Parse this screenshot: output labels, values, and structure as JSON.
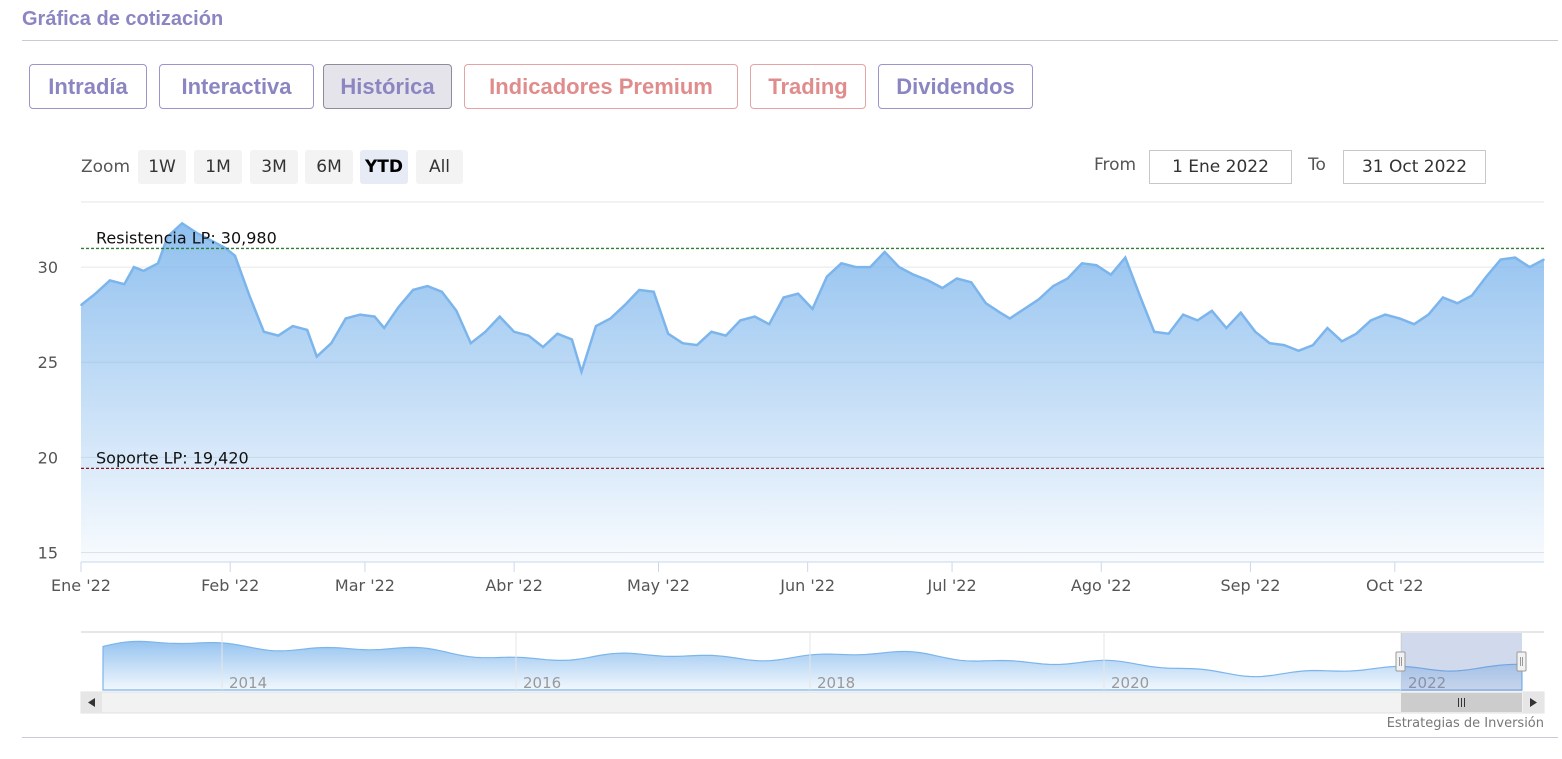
{
  "section_title": "Gráfica de cotización",
  "tabs": [
    {
      "label": "Intradía",
      "active": false,
      "premium": false
    },
    {
      "label": "Interactiva",
      "active": false,
      "premium": false
    },
    {
      "label": "Histórica",
      "active": true,
      "premium": false
    },
    {
      "label": "Indicadores Premium",
      "active": false,
      "premium": true
    },
    {
      "label": "Trading",
      "active": false,
      "premium": true
    },
    {
      "label": "Dividendos",
      "active": false,
      "premium": false
    }
  ],
  "zoom": {
    "label": "Zoom",
    "buttons": [
      "1W",
      "1M",
      "3M",
      "6M",
      "YTD",
      "All"
    ],
    "selected": "YTD"
  },
  "range": {
    "from_label": "From",
    "from_value": "1 Ene 2022",
    "to_label": "To",
    "to_value": "31 Oct 2022"
  },
  "colors": {
    "accent": "#8b86c2",
    "premium": "#e08c8c",
    "line": "#7cb5ec",
    "resistance": "#2e7d32",
    "support": "#8b1a1a"
  },
  "chart_data": {
    "type": "area",
    "title": "",
    "xlabel": "",
    "ylabel": "",
    "ylim": [
      14.5,
      33
    ],
    "yticks": [
      15,
      20,
      25,
      30
    ],
    "xticks": [
      "Ene '22",
      "Feb '22",
      "Mar '22",
      "Abr '22",
      "May '22",
      "Jun '22",
      "Jul '22",
      "Ago '22",
      "Sep '22",
      "Oct '22"
    ],
    "grid": true,
    "series": [
      {
        "values": [
          {
            "x": "2022-01-01",
            "y": 28.0
          },
          {
            "x": "2022-01-04",
            "y": 28.6
          },
          {
            "x": "2022-01-07",
            "y": 29.3
          },
          {
            "x": "2022-01-10",
            "y": 29.1
          },
          {
            "x": "2022-01-12",
            "y": 30.0
          },
          {
            "x": "2022-01-14",
            "y": 29.8
          },
          {
            "x": "2022-01-17",
            "y": 30.2
          },
          {
            "x": "2022-01-19",
            "y": 31.6
          },
          {
            "x": "2022-01-22",
            "y": 32.3
          },
          {
            "x": "2022-01-25",
            "y": 31.8
          },
          {
            "x": "2022-01-28",
            "y": 31.4
          },
          {
            "x": "2022-01-31",
            "y": 31.0
          },
          {
            "x": "2022-02-02",
            "y": 30.6
          },
          {
            "x": "2022-02-05",
            "y": 28.5
          },
          {
            "x": "2022-02-08",
            "y": 26.6
          },
          {
            "x": "2022-02-11",
            "y": 26.4
          },
          {
            "x": "2022-02-14",
            "y": 26.9
          },
          {
            "x": "2022-02-17",
            "y": 26.7
          },
          {
            "x": "2022-02-19",
            "y": 25.3
          },
          {
            "x": "2022-02-22",
            "y": 26.0
          },
          {
            "x": "2022-02-25",
            "y": 27.3
          },
          {
            "x": "2022-02-28",
            "y": 27.5
          },
          {
            "x": "2022-03-03",
            "y": 27.4
          },
          {
            "x": "2022-03-05",
            "y": 26.8
          },
          {
            "x": "2022-03-08",
            "y": 27.9
          },
          {
            "x": "2022-03-11",
            "y": 28.8
          },
          {
            "x": "2022-03-14",
            "y": 29.0
          },
          {
            "x": "2022-03-17",
            "y": 28.7
          },
          {
            "x": "2022-03-20",
            "y": 27.7
          },
          {
            "x": "2022-03-23",
            "y": 26.0
          },
          {
            "x": "2022-03-26",
            "y": 26.6
          },
          {
            "x": "2022-03-29",
            "y": 27.4
          },
          {
            "x": "2022-04-01",
            "y": 26.6
          },
          {
            "x": "2022-04-04",
            "y": 26.4
          },
          {
            "x": "2022-04-07",
            "y": 25.8
          },
          {
            "x": "2022-04-10",
            "y": 26.5
          },
          {
            "x": "2022-04-13",
            "y": 26.2
          },
          {
            "x": "2022-04-15",
            "y": 24.5
          },
          {
            "x": "2022-04-18",
            "y": 26.9
          },
          {
            "x": "2022-04-21",
            "y": 27.3
          },
          {
            "x": "2022-04-24",
            "y": 28.0
          },
          {
            "x": "2022-04-27",
            "y": 28.8
          },
          {
            "x": "2022-04-30",
            "y": 28.7
          },
          {
            "x": "2022-05-03",
            "y": 26.5
          },
          {
            "x": "2022-05-06",
            "y": 26.0
          },
          {
            "x": "2022-05-09",
            "y": 25.9
          },
          {
            "x": "2022-05-12",
            "y": 26.6
          },
          {
            "x": "2022-05-15",
            "y": 26.4
          },
          {
            "x": "2022-05-18",
            "y": 27.2
          },
          {
            "x": "2022-05-21",
            "y": 27.4
          },
          {
            "x": "2022-05-24",
            "y": 27.0
          },
          {
            "x": "2022-05-27",
            "y": 28.4
          },
          {
            "x": "2022-05-30",
            "y": 28.6
          },
          {
            "x": "2022-06-02",
            "y": 27.8
          },
          {
            "x": "2022-06-05",
            "y": 29.5
          },
          {
            "x": "2022-06-08",
            "y": 30.2
          },
          {
            "x": "2022-06-11",
            "y": 30.0
          },
          {
            "x": "2022-06-14",
            "y": 30.0
          },
          {
            "x": "2022-06-17",
            "y": 30.8
          },
          {
            "x": "2022-06-20",
            "y": 30.0
          },
          {
            "x": "2022-06-23",
            "y": 29.6
          },
          {
            "x": "2022-06-26",
            "y": 29.3
          },
          {
            "x": "2022-06-29",
            "y": 28.9
          },
          {
            "x": "2022-07-02",
            "y": 29.4
          },
          {
            "x": "2022-07-05",
            "y": 29.2
          },
          {
            "x": "2022-07-08",
            "y": 28.1
          },
          {
            "x": "2022-07-11",
            "y": 27.6
          },
          {
            "x": "2022-07-13",
            "y": 27.3
          },
          {
            "x": "2022-07-16",
            "y": 27.8
          },
          {
            "x": "2022-07-19",
            "y": 28.3
          },
          {
            "x": "2022-07-22",
            "y": 29.0
          },
          {
            "x": "2022-07-25",
            "y": 29.4
          },
          {
            "x": "2022-07-28",
            "y": 30.2
          },
          {
            "x": "2022-07-31",
            "y": 30.1
          },
          {
            "x": "2022-08-03",
            "y": 29.6
          },
          {
            "x": "2022-08-06",
            "y": 30.5
          },
          {
            "x": "2022-08-09",
            "y": 28.5
          },
          {
            "x": "2022-08-12",
            "y": 26.6
          },
          {
            "x": "2022-08-15",
            "y": 26.5
          },
          {
            "x": "2022-08-18",
            "y": 27.5
          },
          {
            "x": "2022-08-21",
            "y": 27.2
          },
          {
            "x": "2022-08-24",
            "y": 27.7
          },
          {
            "x": "2022-08-27",
            "y": 26.8
          },
          {
            "x": "2022-08-30",
            "y": 27.6
          },
          {
            "x": "2022-09-02",
            "y": 26.6
          },
          {
            "x": "2022-09-05",
            "y": 26.0
          },
          {
            "x": "2022-09-08",
            "y": 25.9
          },
          {
            "x": "2022-09-11",
            "y": 25.6
          },
          {
            "x": "2022-09-14",
            "y": 25.9
          },
          {
            "x": "2022-09-17",
            "y": 26.8
          },
          {
            "x": "2022-09-20",
            "y": 26.1
          },
          {
            "x": "2022-09-23",
            "y": 26.5
          },
          {
            "x": "2022-09-26",
            "y": 27.2
          },
          {
            "x": "2022-09-29",
            "y": 27.5
          },
          {
            "x": "2022-10-02",
            "y": 27.3
          },
          {
            "x": "2022-10-05",
            "y": 27.0
          },
          {
            "x": "2022-10-08",
            "y": 27.5
          },
          {
            "x": "2022-10-11",
            "y": 28.4
          },
          {
            "x": "2022-10-14",
            "y": 28.1
          },
          {
            "x": "2022-10-17",
            "y": 28.5
          },
          {
            "x": "2022-10-20",
            "y": 29.5
          },
          {
            "x": "2022-10-23",
            "y": 30.4
          },
          {
            "x": "2022-10-26",
            "y": 30.5
          },
          {
            "x": "2022-10-29",
            "y": 30.0
          },
          {
            "x": "2022-11-01",
            "y": 30.4
          }
        ]
      }
    ],
    "annotations": [
      {
        "label": "Resistencia LP: 30,980",
        "value": 30.98,
        "style": "dashed",
        "color": "#2e7d32"
      },
      {
        "label": "Soporte LP: 19,420",
        "value": 19.42,
        "style": "dashed",
        "color": "#8b1a1a"
      }
    ],
    "legend": "none"
  },
  "navigator": {
    "year_labels": [
      "2014",
      "2016",
      "2018",
      "2020",
      "2022"
    ],
    "scroll_left_icon": "triangle-left-icon",
    "scroll_right_icon": "triangle-right-icon",
    "thumb_icon": "grip-lines-icon",
    "handle_icon": "grip-lines-icon"
  },
  "credit": "Estrategias de Inversión"
}
